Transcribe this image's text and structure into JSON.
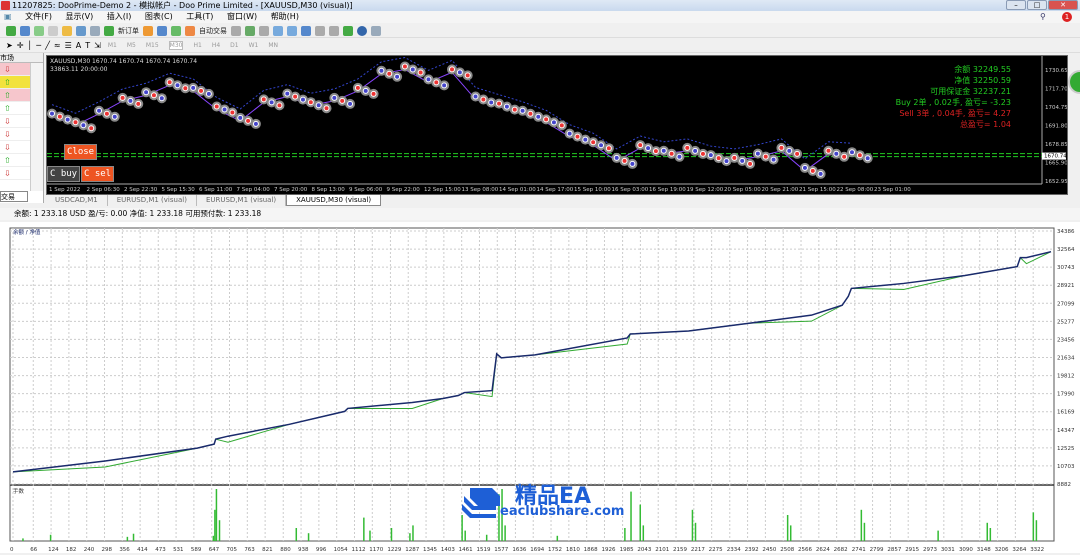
{
  "window": {
    "title": "11207825: DooPrime-Demo 2 - 模拟帐户 - Doo Prime Limited - [XAUUSD,M30 (visual)]",
    "controls": [
      "–",
      "□",
      "✕"
    ],
    "notification_count": "1"
  },
  "menu": [
    "文件(F)",
    "显示(V)",
    "插入(I)",
    "图表(C)",
    "工具(T)",
    "窗口(W)",
    "帮助(H)"
  ],
  "toolbar1": {
    "new_order": "新订单",
    "auto_trade": "自动交易"
  },
  "toolbar2": {
    "timeframes": [
      "M1",
      "M5",
      "M15",
      "M30",
      "H1",
      "H4",
      "D1",
      "W1",
      "MN"
    ],
    "active_timeframe": "M30"
  },
  "left_panel": {
    "market_tab": "市场",
    "trade_tab": "交易",
    "rows": [
      {
        "dir": "down",
        "hl": "pink"
      },
      {
        "dir": "up",
        "hl": "yellow"
      },
      {
        "dir": "up",
        "hl": "pink"
      },
      {
        "dir": "up",
        "hl": ""
      },
      {
        "dir": "down",
        "hl": ""
      },
      {
        "dir": "down",
        "hl": ""
      },
      {
        "dir": "down",
        "hl": ""
      },
      {
        "dir": "up",
        "hl": ""
      },
      {
        "dir": "down",
        "hl": ""
      }
    ]
  },
  "chart": {
    "header_line1": "XAUUSD,M30  1670.74  1670.74  1670.74  1670.74",
    "header_line2": "33863.11     20:00:00",
    "info": {
      "balance": "余额 32249.55",
      "equity": "净值 32250.59",
      "free_margin": "可用保证金 32237.21",
      "buy": "Buy 2单 , 0.02手, 盈亏= -3.23",
      "sell": "Sell 3单 , 0.04手, 盈亏= 4.27",
      "total": "总盈亏= 1.04"
    },
    "buttons": {
      "close": "Close",
      "close_buy": "C buy",
      "close_sell": "C sel"
    },
    "colors": {
      "buy": "#22cc22",
      "sell": "#dd2222",
      "button_red": "#ee5522"
    },
    "price_ticks": [
      "1730.65",
      "1717.70",
      "1704.75",
      "1691.80",
      "1678.85",
      "1665.90",
      "1652.95"
    ],
    "price_range": [
      1652.95,
      1730.65
    ],
    "current_price": "1670.74",
    "time_ticks": [
      "1 Sep 2022",
      "2 Sep 06:30",
      "2 Sep 22:30",
      "5 Sep 15:30",
      "6 Sep 11:00",
      "7 Sep 04:00",
      "7 Sep 20:00",
      "8 Sep 13:00",
      "9 Sep 06:00",
      "9 Sep 22:00",
      "12 Sep 15:00",
      "13 Sep 08:00",
      "14 Sep 01:00",
      "14 Sep 17:00",
      "15 Sep 10:00",
      "16 Sep 03:00",
      "16 Sep 19:00",
      "19 Sep 12:00",
      "20 Sep 05:00",
      "20 Sep 21:00",
      "21 Sep 15:00",
      "22 Sep 08:00",
      "23 Sep 01:00"
    ],
    "price_path": [
      1698,
      1692,
      1700,
      1709,
      1713,
      1720,
      1716,
      1703,
      1695,
      1708,
      1712,
      1706,
      1709,
      1716,
      1728,
      1731,
      1722,
      1729,
      1710,
      1705,
      1700,
      1694,
      1684,
      1678,
      1667,
      1676,
      1672,
      1674,
      1669,
      1667,
      1670,
      1674,
      1660,
      1672,
      1671
    ]
  },
  "tabs": [
    "USDCAD,M1",
    "EURUSD,M1 (visual)",
    "EURUSD,M1 (visual)",
    "XAUUSD,M30 (visual)"
  ],
  "active_tab": 3,
  "status": "余额: 1 233.18 USD  盈/亏: 0.00  净值: 1 233.18  可用预付款: 1 233.18",
  "chart_data": [
    {
      "type": "line",
      "title": "",
      "legend": "余额 / 净值",
      "xlabel": "",
      "ylabel": "",
      "y_ticks": [
        "34386",
        "32564",
        "30743",
        "28921",
        "27099",
        "25277",
        "23456",
        "21634",
        "19812",
        "17990",
        "16169",
        "14347",
        "12525",
        "10703",
        "8882"
      ],
      "ylim": [
        8882,
        34386
      ],
      "xlim": [
        0,
        3380
      ],
      "grid": true,
      "x_ticks": [
        "0",
        "66",
        "124",
        "182",
        "240",
        "298",
        "356",
        "414",
        "473",
        "531",
        "589",
        "647",
        "705",
        "763",
        "821",
        "880",
        "938",
        "996",
        "1054",
        "1112",
        "1170",
        "1229",
        "1287",
        "1345",
        "1403",
        "1461",
        "1519",
        "1577",
        "1636",
        "1694",
        "1752",
        "1810",
        "1868",
        "1926",
        "1985",
        "2043",
        "2101",
        "2159",
        "2217",
        "2275",
        "2334",
        "2392",
        "2450",
        "2508",
        "2566",
        "2624",
        "2682",
        "2741",
        "2799",
        "2857",
        "2915",
        "2973",
        "3031",
        "3090",
        "3148",
        "3206",
        "3264",
        "3322"
      ],
      "series": [
        {
          "name": "余额",
          "color": "#1a2a6c",
          "x": [
            0,
            300,
            600,
            655,
            660,
            700,
            900,
            1080,
            1090,
            1300,
            1400,
            1450,
            1470,
            1560,
            1575,
            1590,
            1700,
            2000,
            2010,
            2200,
            2400,
            2600,
            2700,
            2720,
            2730,
            2900,
            3100,
            3270,
            3280,
            3300,
            3380
          ],
          "y": [
            10100,
            11200,
            12500,
            12900,
            13400,
            13700,
            14900,
            16200,
            16500,
            17100,
            17500,
            17800,
            18100,
            18300,
            22000,
            21600,
            21900,
            23600,
            24000,
            24300,
            25100,
            25900,
            26900,
            27800,
            28600,
            29100,
            29900,
            30800,
            31700,
            31700,
            32300
          ]
        }
      ]
    },
    {
      "type": "bar",
      "title": "手数",
      "xlim": [
        0,
        3380
      ],
      "x": [
        30,
        120,
        370,
        390,
        650,
        655,
        660,
        670,
        920,
        960,
        1140,
        1160,
        1230,
        1290,
        1300,
        1460,
        1470,
        1540,
        1580,
        1590,
        1600,
        1770,
        1990,
        2010,
        2040,
        2050,
        2210,
        2220,
        2520,
        2530,
        2760,
        2770,
        3010,
        3170,
        3180,
        3320,
        3330
      ],
      "values": [
        5,
        12,
        8,
        14,
        10,
        60,
        100,
        40,
        25,
        15,
        45,
        20,
        25,
        15,
        30,
        50,
        20,
        12,
        90,
        100,
        30,
        10,
        25,
        95,
        70,
        30,
        60,
        35,
        50,
        30,
        60,
        35,
        20,
        35,
        25,
        55,
        40
      ]
    }
  ],
  "watermark": {
    "brand": "精品EA",
    "site": "eaclubshare.com"
  }
}
